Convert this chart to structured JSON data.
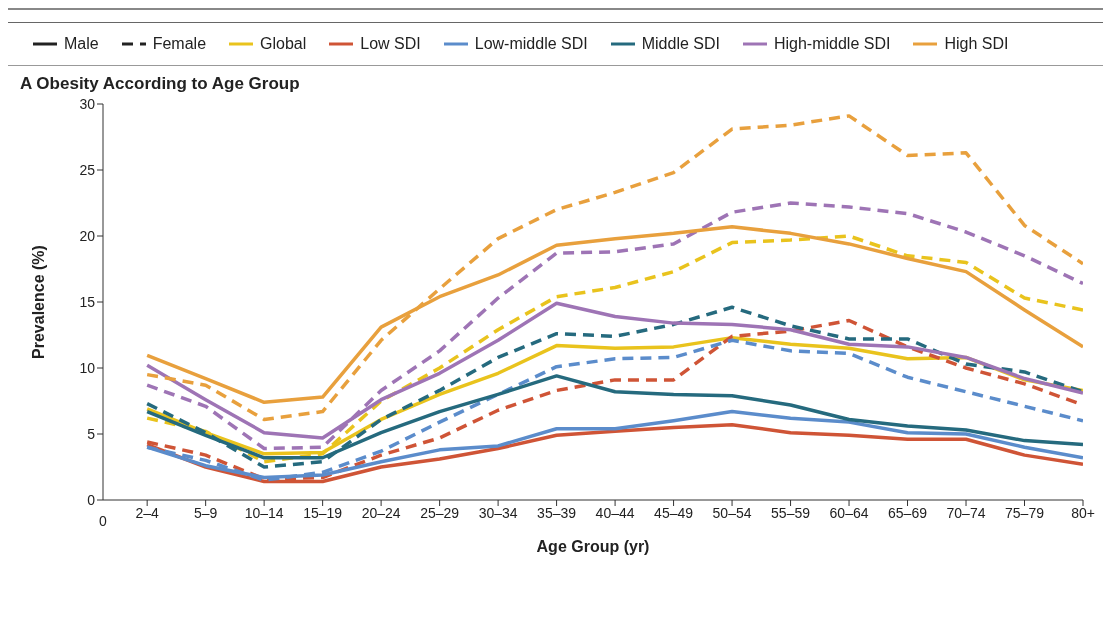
{
  "chart_data": {
    "type": "line",
    "title": "A Obesity According to Age Group",
    "xlabel": "Age Group (yr)",
    "ylabel": "Prevalence (%)",
    "categories": [
      "2–4",
      "5–9",
      "10–14",
      "15–19",
      "20–24",
      "25–29",
      "30–34",
      "35–39",
      "40–44",
      "45–49",
      "50–54",
      "55–59",
      "60–64",
      "65–69",
      "70–74",
      "75–79",
      "80+"
    ],
    "ylim": [
      0,
      30
    ],
    "yticks": [
      0,
      5,
      10,
      15,
      20,
      25,
      30
    ],
    "legend": "top",
    "marker": "none",
    "annotations": [
      "Male",
      "Female",
      "0"
    ],
    "series": [
      {
        "name": "Global",
        "color": "#e9c31d",
        "line_style": "solid",
        "values": [
          6.9,
          5.1,
          3.5,
          3.6,
          6.1,
          8.0,
          9.6,
          11.7,
          11.5,
          11.6,
          12.3,
          11.8,
          11.5,
          10.7,
          10.8,
          9.1,
          8.3
        ]
      },
      {
        "color": "#e9c31d",
        "line_style": "dashed",
        "values": [
          6.2,
          5.2,
          2.9,
          3.5,
          7.5,
          10.0,
          12.9,
          15.4,
          16.1,
          17.3,
          19.5,
          19.7,
          20.0,
          18.5,
          18.0,
          15.3,
          14.4
        ]
      },
      {
        "name": "Low SDI",
        "color": "#cf5436",
        "line_style": "solid",
        "values": [
          4.2,
          2.5,
          1.4,
          1.4,
          2.5,
          3.1,
          3.9,
          4.9,
          5.2,
          5.5,
          5.7,
          5.1,
          4.9,
          4.6,
          4.6,
          3.4,
          2.7
        ]
      },
      {
        "color": "#cf5436",
        "line_style": "dashed",
        "values": [
          4.4,
          3.4,
          1.6,
          1.7,
          3.4,
          4.7,
          6.8,
          8.3,
          9.1,
          9.1,
          12.4,
          12.8,
          13.6,
          11.6,
          10.0,
          8.8,
          7.2
        ]
      },
      {
        "name": "Low-middle SDI",
        "color": "#5b8ccb",
        "line_style": "solid",
        "values": [
          4.0,
          2.6,
          1.7,
          1.9,
          2.9,
          3.8,
          4.1,
          5.4,
          5.4,
          6.0,
          6.7,
          6.2,
          5.9,
          5.1,
          5.0,
          4.0,
          3.2
        ]
      },
      {
        "color": "#5b8ccb",
        "line_style": "dashed",
        "values": [
          4.0,
          3.0,
          1.5,
          2.1,
          3.7,
          5.9,
          8.0,
          10.1,
          10.7,
          10.8,
          12.1,
          11.3,
          11.1,
          9.3,
          8.2,
          7.1,
          6.0
        ]
      },
      {
        "name": "Middle SDI",
        "color": "#256a7e",
        "line_style": "solid",
        "values": [
          6.7,
          4.9,
          3.2,
          3.2,
          5.1,
          6.7,
          8.0,
          9.4,
          8.2,
          8.0,
          7.9,
          7.2,
          6.1,
          5.6,
          5.3,
          4.5,
          4.2
        ]
      },
      {
        "color": "#256a7e",
        "line_style": "dashed",
        "values": [
          7.3,
          5.1,
          2.5,
          2.9,
          6.1,
          8.3,
          10.8,
          12.6,
          12.4,
          13.3,
          14.6,
          13.2,
          12.2,
          12.2,
          10.3,
          9.7,
          8.2
        ]
      },
      {
        "name": "High-middle SDI",
        "color": "#9e74b5",
        "line_style": "solid",
        "values": [
          10.2,
          7.6,
          5.1,
          4.7,
          7.6,
          9.6,
          12.1,
          14.9,
          13.9,
          13.4,
          13.3,
          12.9,
          11.8,
          11.6,
          10.8,
          9.2,
          8.1
        ]
      },
      {
        "color": "#9e74b5",
        "line_style": "dashed",
        "values": [
          8.7,
          7.1,
          3.9,
          4.0,
          8.3,
          11.3,
          15.3,
          18.7,
          18.8,
          19.4,
          21.8,
          22.5,
          22.2,
          21.7,
          20.3,
          18.5,
          16.4
        ]
      },
      {
        "name": "High SDI",
        "color": "#e8a03d",
        "line_style": "solid",
        "values": [
          10.95,
          9.2,
          7.4,
          7.8,
          13.1,
          15.4,
          17.05,
          19.3,
          19.8,
          20.2,
          20.7,
          20.2,
          19.4,
          18.3,
          17.3,
          14.4,
          11.6
        ]
      },
      {
        "color": "#e8a03d",
        "line_style": "dashed",
        "values": [
          9.5,
          8.7,
          6.1,
          6.7,
          12.1,
          16.0,
          19.8,
          22.0,
          23.3,
          24.8,
          28.1,
          28.4,
          29.1,
          26.1,
          26.3,
          20.8,
          17.9
        ]
      }
    ]
  }
}
